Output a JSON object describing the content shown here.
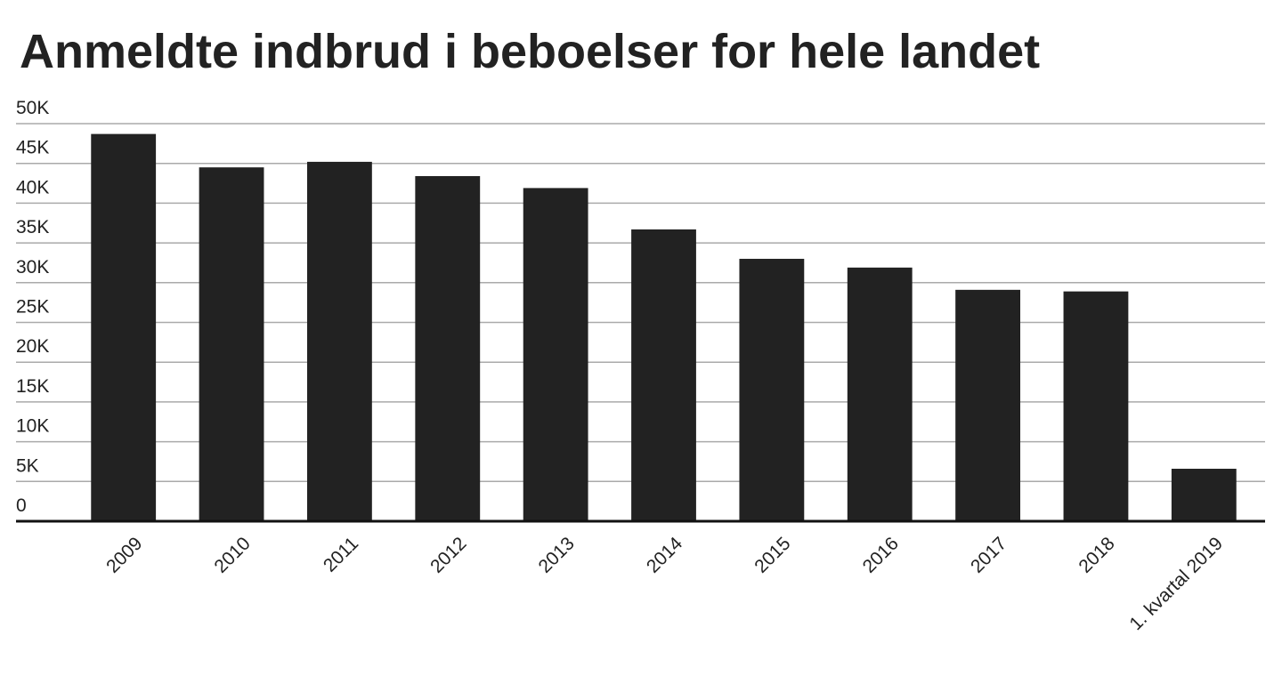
{
  "chart_data": {
    "type": "bar",
    "title": "Anmeldte indbrud i beboelser for hele landet",
    "categories": [
      "2009",
      "2010",
      "2011",
      "2012",
      "2013",
      "2014",
      "2015",
      "2016",
      "2017",
      "2018",
      "1. kvartal 2019"
    ],
    "values": [
      48700,
      44500,
      45200,
      43400,
      41900,
      36700,
      33000,
      31900,
      29100,
      28900,
      6600
    ],
    "color": "#222222",
    "ylim": [
      0,
      50000
    ],
    "yticks": [
      0,
      {
        "value": 5000,
        "label": "5K"
      },
      {
        "value": 10000,
        "label": "10K"
      },
      {
        "value": 15000,
        "label": "15K"
      },
      {
        "value": 20000,
        "label": "20K"
      },
      {
        "value": 25000,
        "label": "25K"
      },
      {
        "value": 30000,
        "label": "30K"
      },
      {
        "value": 35000,
        "label": "35K"
      },
      {
        "value": 40000,
        "label": "40K"
      },
      {
        "value": 45000,
        "label": "45K"
      },
      {
        "value": 50000,
        "label": "50K"
      }
    ],
    "grid": true
  }
}
